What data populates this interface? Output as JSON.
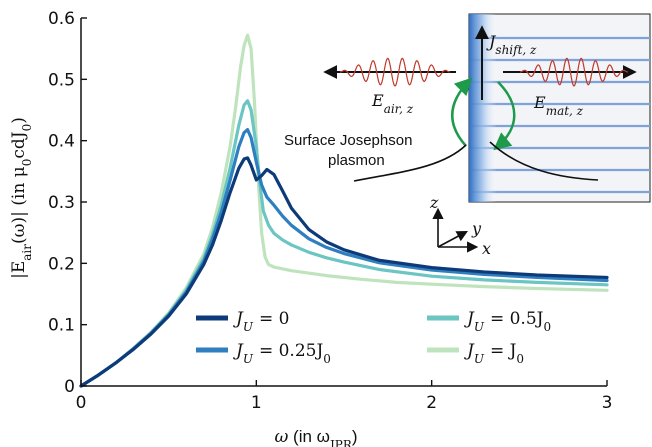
{
  "chart_data": {
    "type": "line",
    "xlabel": "ω (in ω_JPR)",
    "ylabel": "|E_air(ω)| (in μ₀cdJ₀)",
    "xlim": [
      0,
      3
    ],
    "ylim": [
      0,
      0.6
    ],
    "xticks": [
      0,
      1,
      2,
      3
    ],
    "yticks": [
      0,
      0.1,
      0.2,
      0.3,
      0.4,
      0.5,
      0.6
    ],
    "xtick_labels": [
      "0",
      "1",
      "2",
      "3"
    ],
    "ytick_labels": [
      "0",
      "0.1",
      "0.2",
      "0.3",
      "0.4",
      "0.5",
      "0.6"
    ],
    "grid": false,
    "legend_position": "lower-center",
    "series": [
      {
        "name": "J_U = 0",
        "color": "#0d3a78",
        "x": [
          0,
          0.1,
          0.2,
          0.3,
          0.4,
          0.5,
          0.6,
          0.7,
          0.75,
          0.8,
          0.85,
          0.9,
          0.93,
          0.95,
          0.97,
          1.0,
          1.03,
          1.06,
          1.1,
          1.15,
          1.2,
          1.3,
          1.4,
          1.5,
          1.7,
          2.0,
          2.3,
          2.6,
          3.0
        ],
        "y": [
          0,
          0.018,
          0.038,
          0.06,
          0.085,
          0.114,
          0.15,
          0.198,
          0.23,
          0.27,
          0.315,
          0.355,
          0.37,
          0.372,
          0.36,
          0.336,
          0.343,
          0.353,
          0.345,
          0.318,
          0.29,
          0.255,
          0.235,
          0.222,
          0.205,
          0.193,
          0.186,
          0.181,
          0.177
        ]
      },
      {
        "name": "J_U = 0.25J_0",
        "color": "#2e7ec0",
        "x": [
          0,
          0.1,
          0.2,
          0.3,
          0.4,
          0.5,
          0.6,
          0.7,
          0.75,
          0.8,
          0.85,
          0.9,
          0.93,
          0.95,
          0.97,
          1.0,
          1.03,
          1.06,
          1.1,
          1.15,
          1.2,
          1.3,
          1.4,
          1.5,
          1.7,
          2.0,
          2.3,
          2.6,
          3.0
        ],
        "y": [
          0,
          0.018,
          0.038,
          0.061,
          0.086,
          0.116,
          0.153,
          0.203,
          0.24,
          0.283,
          0.335,
          0.39,
          0.413,
          0.418,
          0.405,
          0.365,
          0.328,
          0.308,
          0.295,
          0.277,
          0.262,
          0.24,
          0.226,
          0.216,
          0.201,
          0.189,
          0.182,
          0.177,
          0.172
        ]
      },
      {
        "name": "J_U = 0.5J_0",
        "color": "#6bc5c2",
        "x": [
          0,
          0.1,
          0.2,
          0.3,
          0.4,
          0.5,
          0.6,
          0.7,
          0.75,
          0.8,
          0.85,
          0.9,
          0.93,
          0.95,
          0.97,
          1.0,
          1.02,
          1.04,
          1.07,
          1.1,
          1.15,
          1.2,
          1.3,
          1.4,
          1.5,
          1.7,
          2.0,
          2.3,
          2.6,
          3.0
        ],
        "y": [
          0,
          0.018,
          0.038,
          0.061,
          0.087,
          0.117,
          0.156,
          0.208,
          0.247,
          0.295,
          0.355,
          0.425,
          0.458,
          0.465,
          0.45,
          0.39,
          0.33,
          0.285,
          0.262,
          0.249,
          0.238,
          0.23,
          0.218,
          0.209,
          0.202,
          0.19,
          0.179,
          0.173,
          0.169,
          0.165
        ]
      },
      {
        "name": "J_U = J_0",
        "color": "#bfe4bd",
        "x": [
          0,
          0.1,
          0.2,
          0.3,
          0.4,
          0.5,
          0.6,
          0.7,
          0.75,
          0.8,
          0.85,
          0.88,
          0.91,
          0.93,
          0.95,
          0.97,
          0.99,
          1.01,
          1.03,
          1.05,
          1.07,
          1.1,
          1.2,
          1.4,
          1.6,
          1.8,
          2.0,
          2.3,
          2.6,
          3.0
        ],
        "y": [
          0,
          0.018,
          0.038,
          0.062,
          0.088,
          0.119,
          0.16,
          0.215,
          0.258,
          0.315,
          0.39,
          0.45,
          0.52,
          0.555,
          0.572,
          0.55,
          0.46,
          0.34,
          0.25,
          0.21,
          0.198,
          0.194,
          0.188,
          0.18,
          0.174,
          0.169,
          0.166,
          0.162,
          0.159,
          0.156
        ]
      }
    ]
  },
  "legend": [
    {
      "base": "J",
      "sub": "U",
      "rhs": "= 0",
      "rhs_sub": ""
    },
    {
      "base": "J",
      "sub": "U",
      "rhs": "= 0.25J",
      "rhs_sub": "0"
    },
    {
      "base": "J",
      "sub": "U",
      "rhs": "= 0.5J",
      "rhs_sub": "0"
    },
    {
      "base": "J",
      "sub": "U",
      "rhs": "= J",
      "rhs_sub": "0"
    }
  ],
  "axis_text": {
    "x_omega": "ω",
    "x_in": " (in ω",
    "x_sub": "JPR",
    "x_close": ")",
    "y_abs_open": "|E",
    "y_sub": "air",
    "y_mid": "(ω)| (in μ",
    "y_sub0": "0",
    "y_cd": "cdJ",
    "y_sub1": "0",
    "y_close": ")"
  },
  "inset": {
    "j_shift": "J",
    "j_shift_sub": "shift, z",
    "e_air": "E",
    "e_air_sub": "air, z",
    "e_mat": "E",
    "e_mat_sub": "mat, z",
    "surface_line1": "Surface Josephson",
    "surface_line2": "plasmon",
    "axis_z": "z",
    "axis_y": "y",
    "axis_x": "x",
    "colors": {
      "wave": "#c0392b",
      "arc": "#1e9a4a",
      "layers": "#7fa3d9",
      "edge": "#3d7fd1"
    }
  }
}
